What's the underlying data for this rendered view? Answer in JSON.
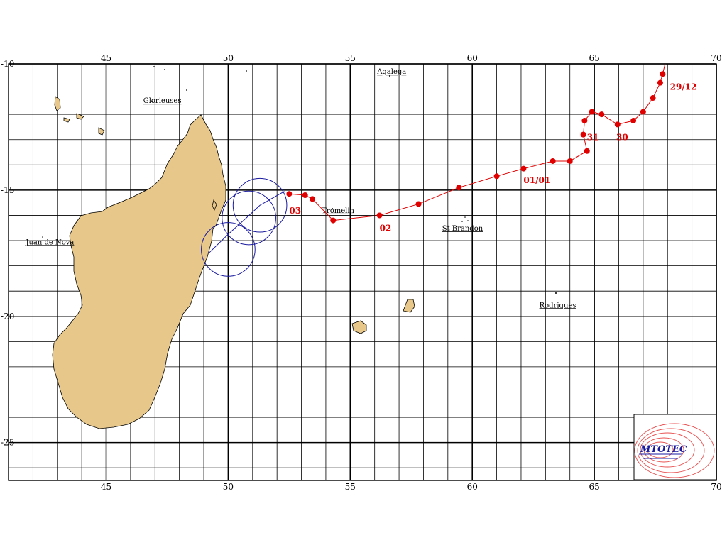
{
  "map": {
    "lon_range": [
      41,
      70
    ],
    "lat_range": [
      -26.5,
      -10
    ],
    "x_ticks": [
      {
        "value": 45,
        "label": "45"
      },
      {
        "value": 50,
        "label": "50"
      },
      {
        "value": 55,
        "label": "55"
      },
      {
        "value": 60,
        "label": "60"
      },
      {
        "value": 65,
        "label": "65"
      },
      {
        "value": 70,
        "label": "70"
      }
    ],
    "y_ticks": [
      {
        "value": -10,
        "label": "-10"
      },
      {
        "value": -15,
        "label": "-15"
      },
      {
        "value": -20,
        "label": "-20"
      },
      {
        "value": -25,
        "label": "-25"
      }
    ],
    "places": [
      {
        "name": "Glorieuses",
        "lon": 47.3,
        "lat": -11.55
      },
      {
        "name": "Agalega",
        "lon": 56.7,
        "lat": -10.4
      },
      {
        "name": "Tromelin",
        "lon": 54.5,
        "lat": -15.9
      },
      {
        "name": "St Brandon",
        "lon": 59.6,
        "lat": -16.6
      },
      {
        "name": "Juan de Nova",
        "lon": 42.7,
        "lat": -17.15
      },
      {
        "name": "Rodriques",
        "lon": 63.5,
        "lat": -19.65
      }
    ],
    "date_labels": [
      {
        "text": "29/12",
        "lon": 68.1,
        "lat": -10.8
      },
      {
        "text": "30",
        "lon": 65.9,
        "lat": -12.8
      },
      {
        "text": "31",
        "lon": 64.7,
        "lat": -12.8
      },
      {
        "text": "01/01",
        "lon": 62.1,
        "lat": -14.5
      },
      {
        "text": "02",
        "lon": 56.2,
        "lat": -16.4
      },
      {
        "text": "03",
        "lon": 52.5,
        "lat": -15.7
      }
    ],
    "colors": {
      "land": "#e8c88a",
      "track": "#e00000",
      "forecast": "#1a1aa0",
      "grid": "#000000"
    }
  },
  "chart_data": {
    "type": "scatter",
    "series": [
      {
        "points": [
          {
            "lon": 67.9,
            "lat": -10.0
          },
          {
            "lon": 67.8,
            "lat": -10.4
          },
          {
            "lon": 67.7,
            "lat": -10.75
          },
          {
            "lon": 67.4,
            "lat": -11.35
          },
          {
            "lon": 67.0,
            "lat": -11.9
          },
          {
            "lon": 66.6,
            "lat": -12.25
          },
          {
            "lon": 65.95,
            "lat": -12.4
          },
          {
            "lon": 65.3,
            "lat": -12.0
          },
          {
            "lon": 64.9,
            "lat": -11.9
          },
          {
            "lon": 64.6,
            "lat": -12.25
          },
          {
            "lon": 64.55,
            "lat": -12.8
          },
          {
            "lon": 64.7,
            "lat": -13.45
          },
          {
            "lon": 64.0,
            "lat": -13.85
          },
          {
            "lon": 63.3,
            "lat": -13.85
          },
          {
            "lon": 62.1,
            "lat": -14.15
          },
          {
            "lon": 61.0,
            "lat": -14.45
          },
          {
            "lon": 59.45,
            "lat": -14.9
          },
          {
            "lon": 57.8,
            "lat": -15.55
          },
          {
            "lon": 56.2,
            "lat": -16.0
          },
          {
            "lon": 54.3,
            "lat": -16.2
          },
          {
            "lon": 53.45,
            "lat": -15.35
          },
          {
            "lon": 53.15,
            "lat": -15.2
          },
          {
            "lon": 52.5,
            "lat": -15.15
          }
        ]
      }
    ],
    "forecast": {
      "path": [
        {
          "lon": 52.3,
          "lat": -15.05
        },
        {
          "lon": 51.3,
          "lat": -15.6
        },
        {
          "lon": 50.8,
          "lat": -16.05
        },
        {
          "lon": 50.0,
          "lat": -16.75
        },
        {
          "lon": 49.2,
          "lat": -17.5
        }
      ],
      "circles": [
        {
          "lon": 51.3,
          "lat": -15.6,
          "radius_deg": 1.1
        },
        {
          "lon": 50.85,
          "lat": -16.1,
          "radius_deg": 1.1
        },
        {
          "lon": 50.0,
          "lat": -17.35,
          "radius_deg": 1.1
        }
      ]
    }
  },
  "logo": {
    "text": "MTOTEC"
  }
}
